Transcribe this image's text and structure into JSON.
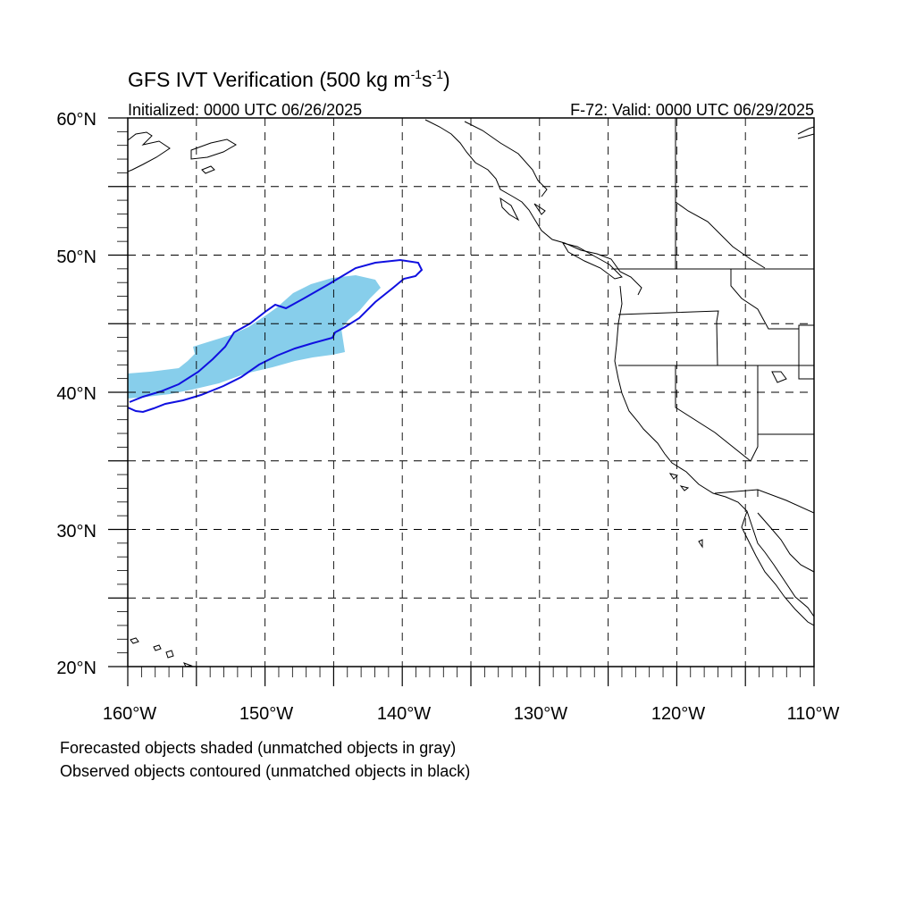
{
  "figure": {
    "title_main": "GFS IVT Verification (500 kg m",
    "title_sup1": "-1",
    "title_mid": "s",
    "title_sup2": "-1",
    "title_end": ")",
    "init_label": "Initialized: 0000 UTC 06/26/2025",
    "valid_label": "F-72: Valid: 0000 UTC 06/29/2025"
  },
  "axes": {
    "lon_ticks": [
      "160°W",
      "150°W",
      "140°W",
      "130°W",
      "120°W",
      "110°W"
    ],
    "lat_ticks": [
      "60°N",
      "50°N",
      "40°N",
      "30°N",
      "20°N"
    ],
    "lon_range": [
      -160,
      -110
    ],
    "lat_range": [
      20,
      60
    ],
    "grid_spacing_deg": 5,
    "grid_style": "dashed"
  },
  "legend": {
    "line1": "Forecasted objects shaded (unmatched objects in gray)",
    "line2": "Observed objects contoured (unmatched objects in black)"
  },
  "objects": {
    "forecast_fill_color": "#87CEEB",
    "observed_contour_color": "#1010E0",
    "coast_color": "#000000"
  }
}
